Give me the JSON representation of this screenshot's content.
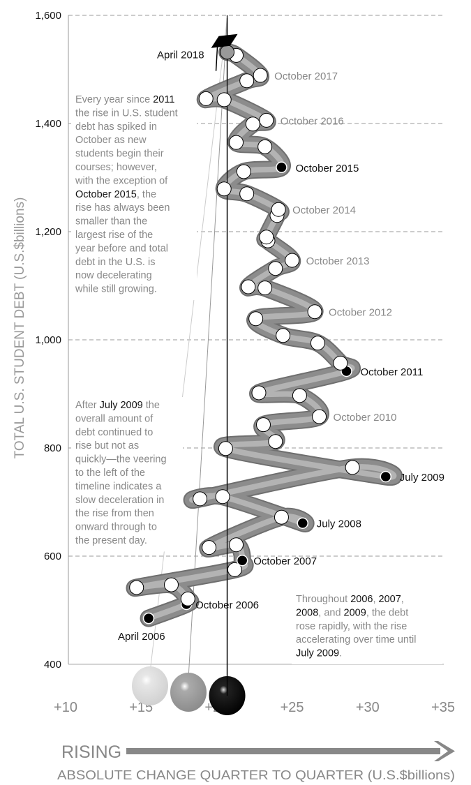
{
  "chart_data": {
    "type": "line",
    "subtype": "connected-scatter",
    "xlabel": "ABSOLUTE CHANGE QUARTER TO QUARTER (U.S.$billions)",
    "ylabel": "TOTAL U.S. STUDENT DEBT (U.S.$billions)",
    "direction_label": "RISING",
    "xlim": [
      10,
      35
    ],
    "ylim": [
      400,
      1600
    ],
    "x_ticks": [
      "+10",
      "+15",
      "+20",
      "+25",
      "+30",
      "+35"
    ],
    "x_tick_values": [
      10,
      15,
      20,
      25,
      30,
      35
    ],
    "y_ticks": [
      "1,600",
      "1,400",
      "1,200",
      "1,000",
      "800",
      "600",
      "400"
    ],
    "y_tick_values": [
      1600,
      1400,
      1200,
      1000,
      800,
      600,
      400
    ],
    "reference_x": 20.7,
    "grid": "horizontal dashed",
    "points": [
      {
        "x": 15.5,
        "y": 485,
        "label": "April 2006",
        "style": "black"
      },
      {
        "x": 18.0,
        "y": 511,
        "label": "October 2006",
        "style": "black"
      },
      {
        "x": 18.1,
        "y": 521
      },
      {
        "x": 17.0,
        "y": 547
      },
      {
        "x": 14.7,
        "y": 542
      },
      {
        "x": 21.2,
        "y": 575
      },
      {
        "x": 21.7,
        "y": 592,
        "label": "October 2007",
        "style": "black"
      },
      {
        "x": 21.3,
        "y": 621
      },
      {
        "x": 19.5,
        "y": 616
      },
      {
        "x": 24.3,
        "y": 672
      },
      {
        "x": 25.7,
        "y": 661,
        "label": "July 2008",
        "style": "black"
      },
      {
        "x": 20.4,
        "y": 710
      },
      {
        "x": 18.9,
        "y": 706
      },
      {
        "x": 29.0,
        "y": 764
      },
      {
        "x": 31.2,
        "y": 747,
        "label": "July 2009",
        "style": "black"
      },
      {
        "x": 20.6,
        "y": 799
      },
      {
        "x": 23.9,
        "y": 812
      },
      {
        "x": 23.1,
        "y": 843
      },
      {
        "x": 26.8,
        "y": 858,
        "label": "October 2010",
        "style": "muted"
      },
      {
        "x": 25.5,
        "y": 897
      },
      {
        "x": 22.8,
        "y": 902
      },
      {
        "x": 28.6,
        "y": 942,
        "label": "October 2011",
        "style": "black"
      },
      {
        "x": 28.2,
        "y": 957
      },
      {
        "x": 26.7,
        "y": 994
      },
      {
        "x": 24.4,
        "y": 1008
      },
      {
        "x": 22.6,
        "y": 1039
      },
      {
        "x": 26.5,
        "y": 1052,
        "label": "October 2012",
        "style": "muted"
      },
      {
        "x": 23.2,
        "y": 1096
      },
      {
        "x": 22.1,
        "y": 1098
      },
      {
        "x": 23.9,
        "y": 1132
      },
      {
        "x": 25.0,
        "y": 1147,
        "label": "October 2013",
        "style": "muted"
      },
      {
        "x": 23.4,
        "y": 1183
      },
      {
        "x": 23.3,
        "y": 1190
      },
      {
        "x": 24.0,
        "y": 1230
      },
      {
        "x": 24.1,
        "y": 1241,
        "label": "October 2014",
        "style": "muted"
      },
      {
        "x": 22.0,
        "y": 1270
      },
      {
        "x": 20.5,
        "y": 1279
      },
      {
        "x": 21.8,
        "y": 1311
      },
      {
        "x": 24.3,
        "y": 1319,
        "label": "October 2015",
        "style": "black"
      },
      {
        "x": 23.2,
        "y": 1357
      },
      {
        "x": 21.3,
        "y": 1365
      },
      {
        "x": 22.4,
        "y": 1399
      },
      {
        "x": 23.3,
        "y": 1406,
        "label": "October 2016",
        "style": "muted"
      },
      {
        "x": 20.5,
        "y": 1444
      },
      {
        "x": 19.3,
        "y": 1446
      },
      {
        "x": 22.0,
        "y": 1479
      },
      {
        "x": 22.9,
        "y": 1489,
        "label": "October 2017",
        "style": "muted"
      },
      {
        "x": 21.3,
        "y": 1526
      },
      {
        "x": 20.7,
        "y": 1532,
        "label": "April 2018",
        "style": "cap"
      }
    ],
    "annotations": [
      {
        "lines": [
          [
            {
              "t": "Every year since "
            },
            {
              "t": "2011",
              "em": true
            }
          ],
          [
            {
              "t": "the rise in U.S. student"
            }
          ],
          [
            {
              "t": "debt has spiked in"
            }
          ],
          [
            {
              "t": "October as new"
            }
          ],
          [
            {
              "t": "students begin their"
            }
          ],
          [
            {
              "t": "courses; however,"
            }
          ],
          [
            {
              "t": "with the exception of"
            }
          ],
          [
            {
              "t": "October 2015",
              "em": true
            },
            {
              "t": ", the"
            }
          ],
          [
            {
              "t": "rise has always been"
            }
          ],
          [
            {
              "t": "smaller than the"
            }
          ],
          [
            {
              "t": "largest rise of the"
            }
          ],
          [
            {
              "t": "year before and total"
            }
          ],
          [
            {
              "t": "debt in the U.S. is"
            }
          ],
          [
            {
              "t": "now decelerating"
            }
          ],
          [
            {
              "t": "while still growing."
            }
          ]
        ]
      },
      {
        "lines": [
          [
            {
              "t": "After "
            },
            {
              "t": "July 2009",
              "em": true
            },
            {
              "t": " the"
            }
          ],
          [
            {
              "t": "overall amount of"
            }
          ],
          [
            {
              "t": "debt continued to"
            }
          ],
          [
            {
              "t": "rise but not as"
            }
          ],
          [
            {
              "t": "quickly—the veering"
            }
          ],
          [
            {
              "t": "to the left of the"
            }
          ],
          [
            {
              "t": "timeline indicates a"
            }
          ],
          [
            {
              "t": "slow deceleration in"
            }
          ],
          [
            {
              "t": "the rise from then"
            }
          ],
          [
            {
              "t": "onward through to"
            }
          ],
          [
            {
              "t": "the present day."
            }
          ]
        ]
      },
      {
        "lines": [
          [
            {
              "t": "Throughout "
            },
            {
              "t": "2006",
              "em": true
            },
            {
              "t": ", "
            },
            {
              "t": "2007",
              "em": true
            },
            {
              "t": ","
            }
          ],
          [
            {
              "t": "2008",
              "em": true
            },
            {
              "t": ", and "
            },
            {
              "t": "2009",
              "em": true
            },
            {
              "t": ", the debt"
            }
          ],
          [
            {
              "t": "rose rapidly, with the rise"
            }
          ],
          [
            {
              "t": "accelerating over time until"
            }
          ],
          [
            {
              "t": "July 2009",
              "em": true
            },
            {
              "t": "."
            }
          ]
        ]
      }
    ],
    "colors": {
      "tube": "#8c8c8c",
      "tube_highlight": "#bdbdbd",
      "muted_text": "#888888",
      "emphasis_text": "#111111",
      "ball_light": "#d8d8d8",
      "ball_mid": "#9a9a9a",
      "ball_dark": "#000000"
    }
  }
}
